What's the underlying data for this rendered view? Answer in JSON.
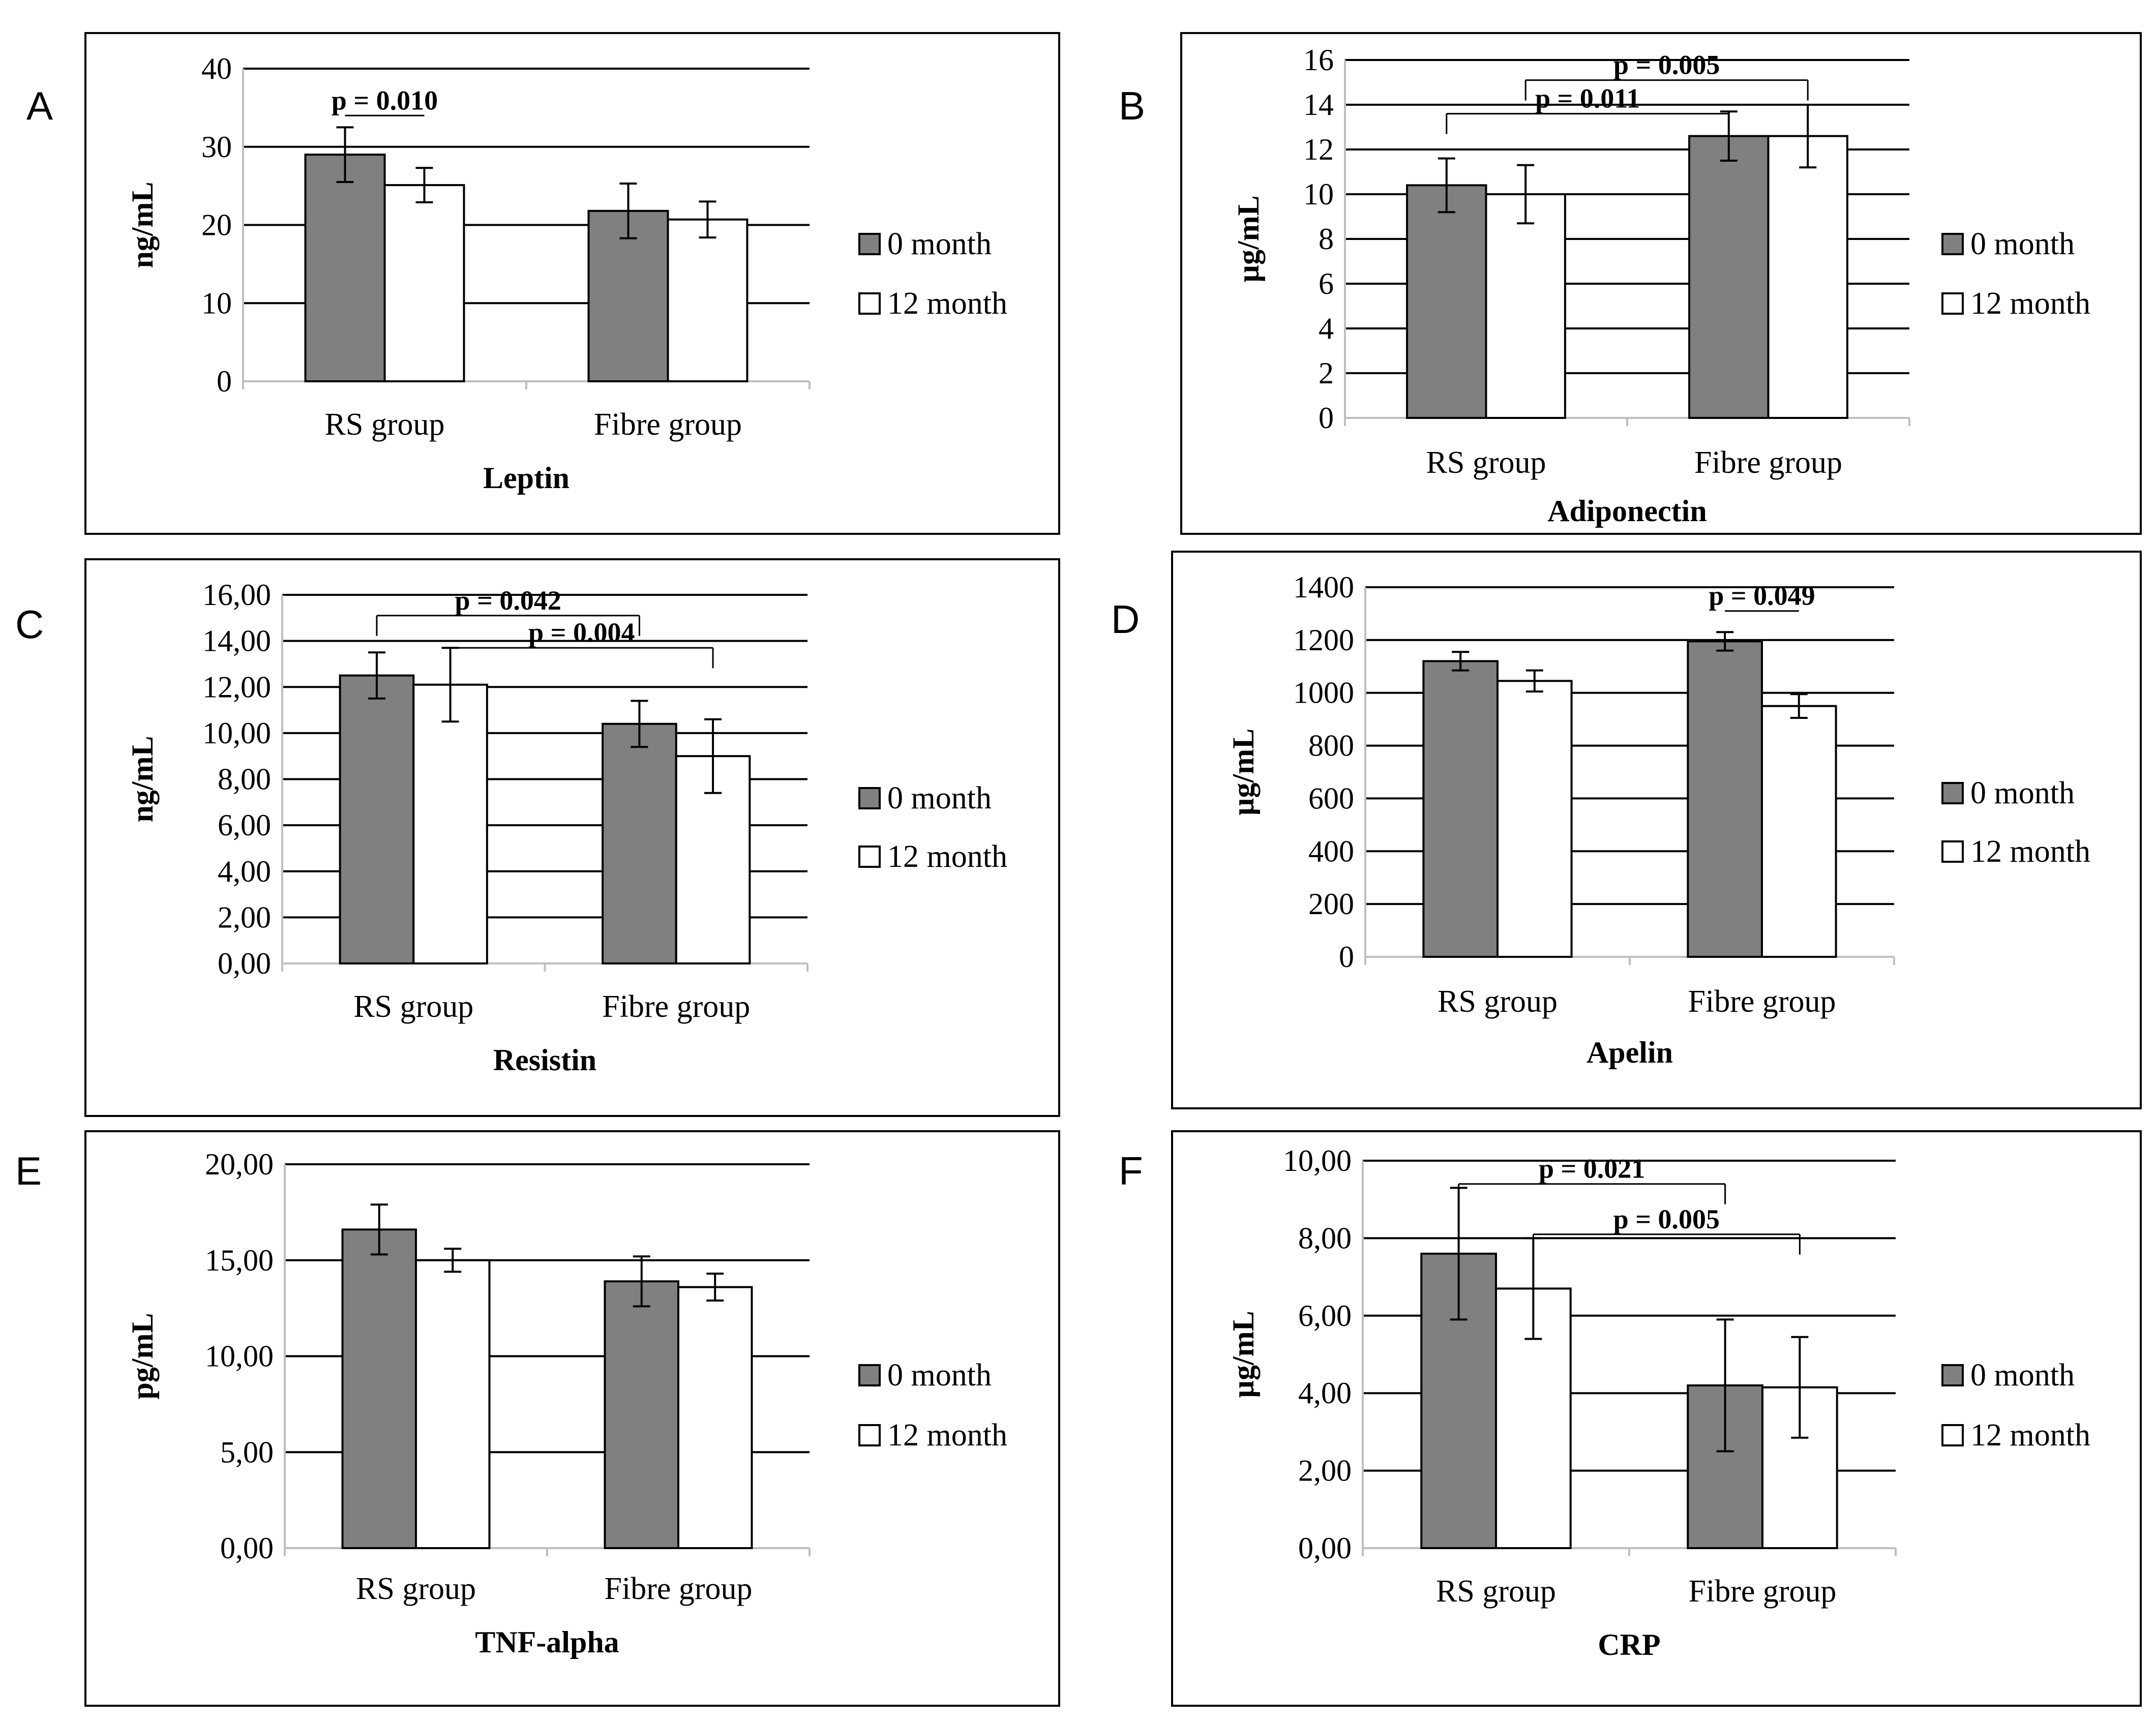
{
  "chart_data": [
    {
      "type": "bar",
      "panel": "A",
      "title": "Leptin",
      "ylabel": "ng/mL",
      "xlabel": "Leptin",
      "categories": [
        "RS group",
        "Fibre group"
      ],
      "series": [
        {
          "name": "0 month",
          "values": [
            29.0,
            21.8
          ],
          "errors": [
            3.5,
            3.5
          ],
          "color": "#808080"
        },
        {
          "name": "12 month",
          "values": [
            25.1,
            20.7
          ],
          "errors": [
            2.2,
            2.3
          ],
          "color": "#ffffff"
        }
      ],
      "ylim": [
        0,
        40
      ],
      "yticks": [
        "0",
        "10",
        "20",
        "30",
        "40"
      ],
      "annotations": [
        {
          "label": "p = 0.010",
          "from": [
            0,
            0
          ],
          "to": [
            0,
            1
          ],
          "level": 34
        }
      ]
    },
    {
      "type": "bar",
      "panel": "B",
      "title": "Adiponectin",
      "ylabel": "µg/mL",
      "xlabel": "Adiponectin",
      "categories": [
        "RS group",
        "Fibre group"
      ],
      "series": [
        {
          "name": "0 month",
          "values": [
            10.4,
            12.6
          ],
          "errors": [
            1.2,
            1.1
          ],
          "color": "#808080"
        },
        {
          "name": "12 month",
          "values": [
            10.0,
            12.6
          ],
          "errors": [
            1.3,
            1.4
          ],
          "color": "#ffffff"
        }
      ],
      "ylim": [
        0,
        16
      ],
      "yticks": [
        "0",
        "2",
        "4",
        "6",
        "8",
        "10",
        "12",
        "14",
        "16"
      ],
      "annotations": [
        {
          "label": "p = 0.011",
          "from": [
            0,
            0
          ],
          "to": [
            1,
            0
          ],
          "level": 13.6
        },
        {
          "label": "p = 0.005",
          "from": [
            0,
            1
          ],
          "to": [
            1,
            1
          ],
          "level": 15.1
        }
      ]
    },
    {
      "type": "bar",
      "panel": "C",
      "title": "Resistin",
      "ylabel": "ng/mL",
      "xlabel": "Resistin",
      "categories": [
        "RS group",
        "Fibre group"
      ],
      "series": [
        {
          "name": "0 month",
          "values": [
            12.5,
            10.4
          ],
          "errors": [
            1.0,
            1.0
          ],
          "color": "#808080"
        },
        {
          "name": "12 month",
          "values": [
            12.1,
            9.0
          ],
          "errors": [
            1.6,
            1.6
          ],
          "color": "#ffffff"
        }
      ],
      "ylim": [
        0,
        16
      ],
      "yticks": [
        "0,00",
        "2,00",
        "4,00",
        "6,00",
        "8,00",
        "10,00",
        "12,00",
        "14,00",
        "16,00"
      ],
      "annotations": [
        {
          "label": "p = 0.042",
          "from": [
            0,
            0
          ],
          "to": [
            1,
            0
          ],
          "level": 15.1
        },
        {
          "label": "p = 0.004",
          "from": [
            0,
            1
          ],
          "to": [
            1,
            1
          ],
          "level": 13.7
        }
      ]
    },
    {
      "type": "bar",
      "panel": "D",
      "title": "Apelin",
      "ylabel": "µg/mL",
      "xlabel": "Apelin",
      "categories": [
        "RS group",
        "Fibre group"
      ],
      "series": [
        {
          "name": "0 month",
          "values": [
            1120,
            1195
          ],
          "errors": [
            35,
            35
          ],
          "color": "#808080"
        },
        {
          "name": "12 month",
          "values": [
            1045,
            950
          ],
          "errors": [
            40,
            45
          ],
          "color": "#ffffff"
        }
      ],
      "ylim": [
        0,
        1400
      ],
      "yticks": [
        "0",
        "200",
        "400",
        "600",
        "800",
        "1000",
        "1200",
        "1400"
      ],
      "annotations": [
        {
          "label": "p = 0.049",
          "from": [
            1,
            0
          ],
          "to": [
            1,
            1
          ],
          "level": 1310
        }
      ]
    },
    {
      "type": "bar",
      "panel": "E",
      "title": "TNF-alpha",
      "ylabel": "pg/mL",
      "xlabel": "TNF-alpha",
      "categories": [
        "RS group",
        "Fibre group"
      ],
      "series": [
        {
          "name": "0 month",
          "values": [
            16.6,
            13.9
          ],
          "errors": [
            1.3,
            1.3
          ],
          "color": "#808080"
        },
        {
          "name": "12 month",
          "values": [
            15.0,
            13.6
          ],
          "errors": [
            0.6,
            0.7
          ],
          "color": "#ffffff"
        }
      ],
      "ylim": [
        0,
        20
      ],
      "yticks": [
        "0,00",
        "5,00",
        "10,00",
        "15,00",
        "20,00"
      ],
      "annotations": []
    },
    {
      "type": "bar",
      "panel": "F",
      "title": "CRP",
      "ylabel": "µg/mL",
      "xlabel": "CRP",
      "categories": [
        "RS group",
        "Fibre group"
      ],
      "series": [
        {
          "name": "0 month",
          "values": [
            7.6,
            4.2
          ],
          "errors": [
            1.7,
            1.7
          ],
          "color": "#808080"
        },
        {
          "name": "12 month",
          "values": [
            6.7,
            4.15
          ],
          "errors": [
            1.3,
            1.3
          ],
          "color": "#ffffff"
        }
      ],
      "ylim": [
        0,
        10
      ],
      "yticks": [
        "0,00",
        "2,00",
        "4,00",
        "6,00",
        "8,00",
        "10,00"
      ],
      "annotations": [
        {
          "label": "p = 0.021",
          "from": [
            0,
            0
          ],
          "to": [
            1,
            0
          ],
          "level": 9.4
        },
        {
          "label": "p = 0.005",
          "from": [
            0,
            1
          ],
          "to": [
            1,
            1
          ],
          "level": 8.1
        }
      ]
    }
  ]
}
